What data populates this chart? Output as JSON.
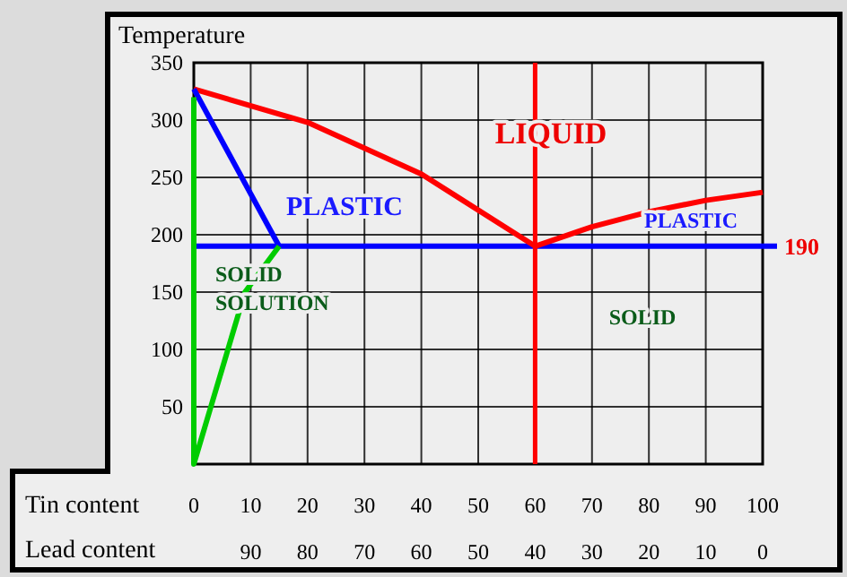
{
  "chart_data": {
    "type": "line",
    "ylabel": "Temperature",
    "xlabel": "Tin content",
    "x2label": "Lead content",
    "xlim": [
      0,
      100
    ],
    "xticks": [
      0,
      10,
      20,
      30,
      40,
      50,
      60,
      70,
      80,
      90,
      100
    ],
    "x2lim": [
      100,
      0
    ],
    "x2ticks": [
      90,
      80,
      70,
      60,
      50,
      40,
      30,
      20,
      10,
      0
    ],
    "ylim": [
      0,
      350
    ],
    "yticks": [
      50,
      100,
      150,
      200,
      250,
      300,
      350
    ],
    "grid": true,
    "marker": "none",
    "line_style": "solid",
    "series": [
      {
        "color": "#ff0000",
        "x": [
          0,
          20,
          40,
          60,
          70,
          80,
          90,
          100
        ],
        "values": [
          327,
          298,
          253,
          190,
          207,
          220,
          230,
          237
        ]
      },
      {
        "color": "#0000ff",
        "x": [
          0,
          15
        ],
        "values": [
          327,
          190
        ]
      },
      {
        "color": "#00cc00",
        "x": [
          0,
          0,
          3,
          6,
          9,
          15
        ],
        "values": [
          320,
          0,
          50,
          100,
          150,
          190
        ]
      }
    ],
    "ref_lines": [
      {
        "axis": "y",
        "value": 190,
        "label": "190",
        "color": "#0000ff"
      },
      {
        "axis": "x",
        "value": 60,
        "color": "#ff0000"
      }
    ],
    "annotations": [
      "LIQUID",
      "PLASTIC",
      "PLASTIC",
      "SOLID SOLUTION",
      "SOLID"
    ]
  }
}
